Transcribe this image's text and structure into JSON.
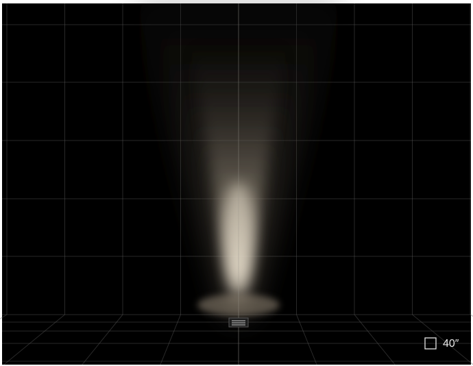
{
  "label": "40″"
}
